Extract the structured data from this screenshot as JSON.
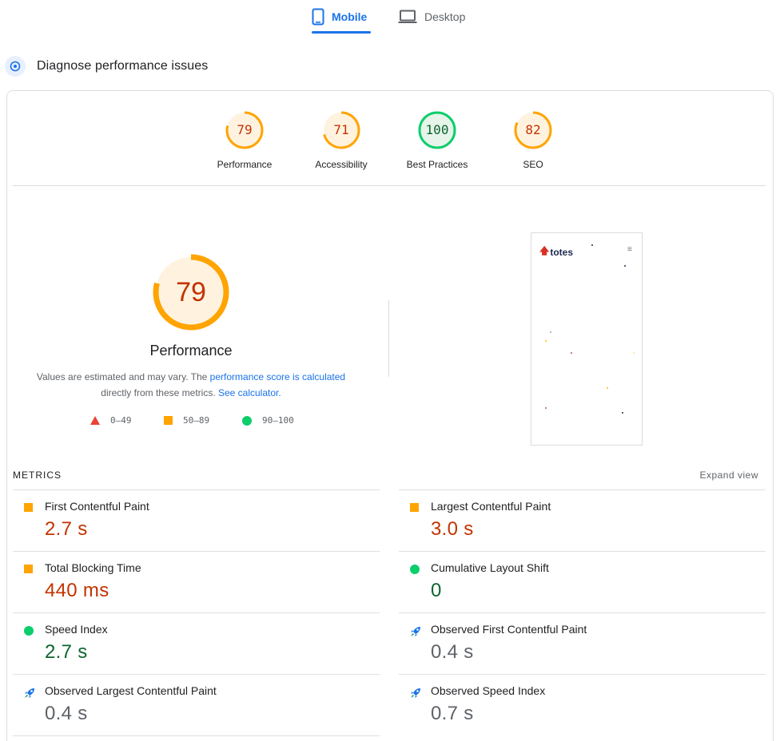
{
  "tabs": {
    "mobile_label": "Mobile",
    "desktop_label": "Desktop",
    "active": "Mobile"
  },
  "section": {
    "title": "Diagnose performance issues"
  },
  "categories": [
    {
      "label": "Performance",
      "score": "79",
      "status": "average"
    },
    {
      "label": "Accessibility",
      "score": "71",
      "status": "average"
    },
    {
      "label": "Best Practices",
      "score": "100",
      "status": "pass"
    },
    {
      "label": "SEO",
      "score": "82",
      "status": "average"
    }
  ],
  "performance": {
    "score": "79",
    "title": "Performance",
    "desc_prefix": "Values are estimated and may vary. The ",
    "desc_link1": "performance score is calculated",
    "desc_middle": "directly from these metrics. ",
    "desc_link2": "See calculator."
  },
  "legend": {
    "fail": "0–49",
    "average": "50–89",
    "pass": "90–100"
  },
  "screenshot": {
    "logo_text": "totes"
  },
  "metrics": {
    "title": "METRICS",
    "expand_label": "Expand view",
    "items": [
      {
        "label": "First Contentful Paint",
        "value": "2.7 s",
        "status": "average"
      },
      {
        "label": "Largest Contentful Paint",
        "value": "3.0 s",
        "status": "average"
      },
      {
        "label": "Total Blocking Time",
        "value": "440 ms",
        "status": "average"
      },
      {
        "label": "Cumulative Layout Shift",
        "value": "0",
        "status": "pass"
      },
      {
        "label": "Speed Index",
        "value": "2.7 s",
        "status": "pass"
      },
      {
        "label": "Observed First Contentful Paint",
        "value": "0.4 s",
        "status": "observed"
      },
      {
        "label": "Observed Largest Contentful Paint",
        "value": "0.4 s",
        "status": "observed"
      },
      {
        "label": "Observed Speed Index",
        "value": "0.7 s",
        "status": "observed"
      }
    ]
  },
  "colors": {
    "accent": "#1a73e8",
    "average": "#ffa400",
    "average_text": "#c33300",
    "pass": "#0cce6b",
    "pass_text": "#0d652d",
    "fail": "#eb4335"
  }
}
